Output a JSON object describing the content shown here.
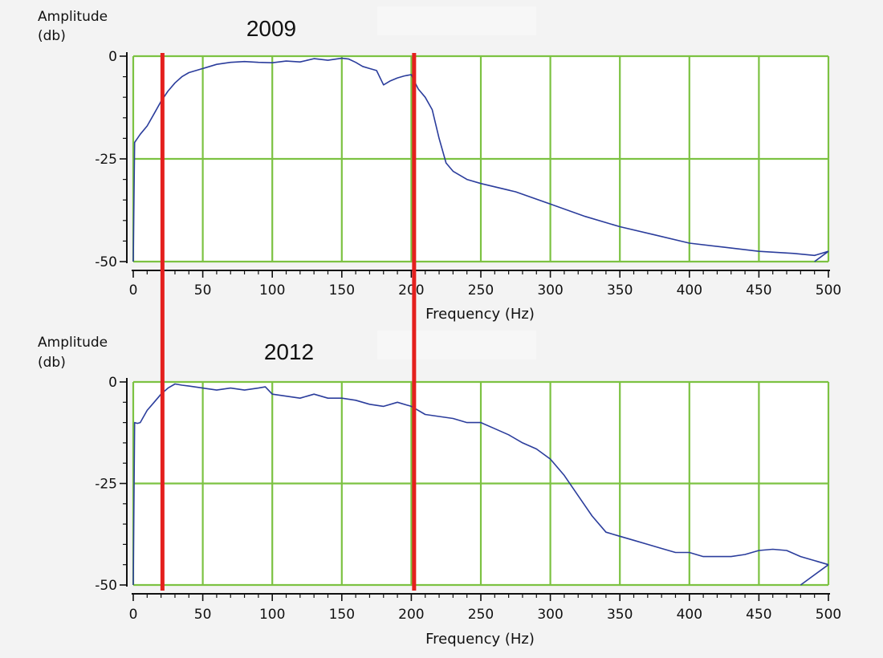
{
  "chart_data": [
    {
      "type": "line",
      "title": "2009",
      "ylabel_line1": "Amplitude",
      "ylabel_line2": "(db)",
      "xlabel": "Frequency (Hz)",
      "xlim": [
        0,
        500
      ],
      "ylim": [
        -50,
        0
      ],
      "x_ticks": [
        0,
        50,
        100,
        150,
        200,
        250,
        300,
        350,
        400,
        450,
        500
      ],
      "x_tick_labels": [
        "0",
        "50",
        "100",
        "150",
        "200",
        "250",
        "300",
        "350",
        "400",
        "450",
        "500"
      ],
      "y_ticks": [
        0,
        -25,
        -50
      ],
      "y_tick_labels": [
        "0",
        "-25",
        "-50"
      ],
      "grid": true,
      "grid_color": "#7cc242",
      "line_color": "#2b3d9c",
      "markers_color": "#e4201e",
      "markers_x": [
        21,
        202
      ],
      "series": [
        {
          "x": [
            0,
            1,
            3,
            5,
            10,
            15,
            20,
            25,
            30,
            35,
            40,
            50,
            60,
            70,
            80,
            90,
            100,
            110,
            120,
            130,
            140,
            150,
            155,
            160,
            165,
            170,
            175,
            180,
            185,
            190,
            195,
            200,
            202,
            205,
            210,
            215,
            220,
            225,
            230,
            240,
            250,
            275,
            300,
            325,
            350,
            375,
            400,
            425,
            450,
            475,
            490,
            500
          ],
          "y": [
            -50,
            -21,
            -20,
            -19,
            -17,
            -14,
            -11,
            -8.5,
            -6.5,
            -5,
            -4,
            -3,
            -2,
            -1.5,
            -1.3,
            -1.5,
            -1.6,
            -1.2,
            -1.4,
            -0.6,
            -1,
            -0.5,
            -0.7,
            -1.5,
            -2.5,
            -3,
            -3.5,
            -7,
            -6,
            -5.3,
            -4.8,
            -4.5,
            -6,
            -8,
            -10,
            -13,
            -20,
            -26,
            -28,
            -30,
            -31,
            -33,
            -36,
            -39,
            -41.5,
            -43.5,
            -45.5,
            -46.5,
            -47.5,
            -48,
            -48.5,
            -47.5
          ]
        },
        {
          "x": [
            490,
            500
          ],
          "y": [
            -50,
            -47.5
          ]
        }
      ]
    },
    {
      "type": "line",
      "title": "2012",
      "ylabel_line1": "Amplitude",
      "ylabel_line2": "(db)",
      "xlabel": "Frequency (Hz)",
      "xlim": [
        0,
        500
      ],
      "ylim": [
        -50,
        0
      ],
      "x_ticks": [
        0,
        50,
        100,
        150,
        200,
        250,
        300,
        350,
        400,
        450,
        500
      ],
      "x_tick_labels": [
        "0",
        "50",
        "100",
        "150",
        "200",
        "250",
        "300",
        "350",
        "400",
        "450",
        "500"
      ],
      "y_ticks": [
        0,
        -25,
        -50
      ],
      "y_tick_labels": [
        "0",
        "-25",
        "-50"
      ],
      "grid": true,
      "grid_color": "#7cc242",
      "line_color": "#2b3d9c",
      "markers_color": "#e4201e",
      "markers_x": [
        21,
        202
      ],
      "series": [
        {
          "x": [
            0,
            1,
            3,
            5,
            10,
            15,
            20,
            25,
            30,
            35,
            40,
            50,
            60,
            70,
            80,
            90,
            95,
            100,
            110,
            120,
            130,
            140,
            150,
            160,
            170,
            180,
            190,
            200,
            210,
            220,
            230,
            240,
            250,
            260,
            270,
            280,
            290,
            300,
            310,
            320,
            330,
            340,
            350,
            360,
            370,
            380,
            390,
            400,
            410,
            420,
            430,
            440,
            450,
            460,
            470,
            480,
            490,
            500
          ],
          "y": [
            -50,
            -10,
            -10.2,
            -10,
            -7,
            -5,
            -3,
            -1.5,
            -0.5,
            -0.8,
            -1,
            -1.5,
            -2,
            -1.5,
            -2,
            -1.5,
            -1.2,
            -3,
            -3.5,
            -4,
            -3,
            -4,
            -4,
            -4.5,
            -5.5,
            -6,
            -5,
            -6,
            -8,
            -8.5,
            -9,
            -10,
            -10,
            -11.5,
            -13,
            -15,
            -16.5,
            -19,
            -23,
            -28,
            -33,
            -37,
            -38,
            -39,
            -40,
            -41,
            -42,
            -42,
            -43,
            -43,
            -43,
            -42.5,
            -41.5,
            -41.2,
            -41.5,
            -43,
            -44,
            -45
          ]
        },
        {
          "x": [
            480,
            500
          ],
          "y": [
            -50,
            -45
          ]
        }
      ]
    }
  ]
}
